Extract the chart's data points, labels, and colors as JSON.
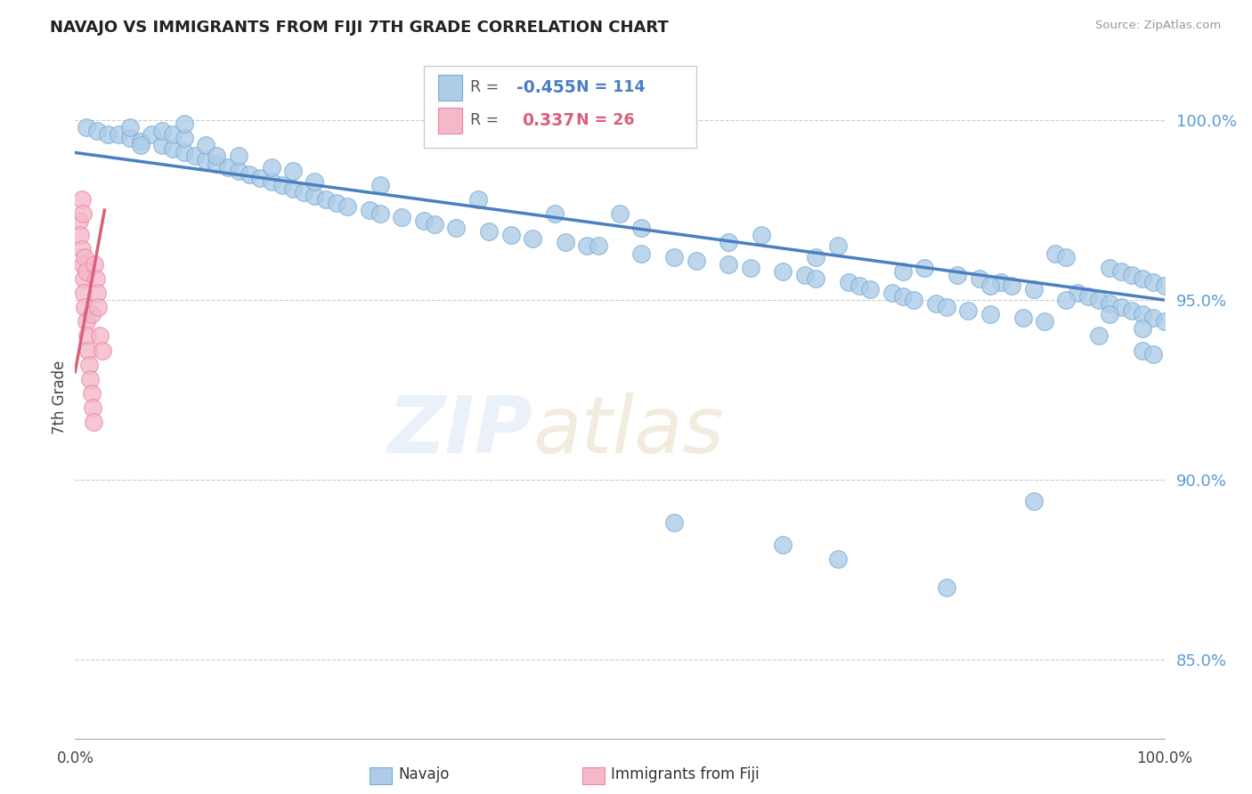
{
  "title": "NAVAJO VS IMMIGRANTS FROM FIJI 7TH GRADE CORRELATION CHART",
  "source_text": "Source: ZipAtlas.com",
  "ylabel": "7th Grade",
  "ytick_values": [
    0.85,
    0.9,
    0.95,
    1.0
  ],
  "xmin": 0.0,
  "xmax": 1.0,
  "ymin": 0.828,
  "ymax": 1.018,
  "navajo_color": "#aecce8",
  "navajo_edge_color": "#7aadd4",
  "fiji_color": "#f4b8c8",
  "fiji_edge_color": "#e888a8",
  "navajo_line_color": "#4a7fc1",
  "fiji_line_color": "#d9607a",
  "legend_navajo_R": "-0.455",
  "legend_navajo_N": "114",
  "legend_fiji_R": "0.337",
  "legend_fiji_N": "26",
  "navajo_scatter_x": [
    0.01,
    0.02,
    0.03,
    0.04,
    0.05,
    0.05,
    0.06,
    0.07,
    0.08,
    0.08,
    0.09,
    0.09,
    0.1,
    0.1,
    0.1,
    0.11,
    0.12,
    0.12,
    0.13,
    0.14,
    0.15,
    0.15,
    0.16,
    0.17,
    0.18,
    0.18,
    0.19,
    0.2,
    0.21,
    0.22,
    0.22,
    0.23,
    0.24,
    0.25,
    0.27,
    0.28,
    0.3,
    0.32,
    0.33,
    0.35,
    0.38,
    0.4,
    0.42,
    0.45,
    0.47,
    0.48,
    0.5,
    0.52,
    0.55,
    0.57,
    0.6,
    0.62,
    0.63,
    0.65,
    0.67,
    0.68,
    0.7,
    0.71,
    0.72,
    0.73,
    0.75,
    0.76,
    0.77,
    0.78,
    0.79,
    0.8,
    0.81,
    0.82,
    0.83,
    0.84,
    0.85,
    0.86,
    0.87,
    0.88,
    0.89,
    0.9,
    0.91,
    0.92,
    0.93,
    0.94,
    0.94,
    0.95,
    0.95,
    0.96,
    0.96,
    0.97,
    0.97,
    0.98,
    0.98,
    0.98,
    0.99,
    0.99,
    0.99,
    1.0,
    1.0,
    0.06,
    0.13,
    0.2,
    0.28,
    0.37,
    0.44,
    0.52,
    0.6,
    0.68,
    0.76,
    0.84,
    0.91,
    0.95,
    0.98,
    0.7,
    0.8,
    0.55,
    0.65,
    0.88
  ],
  "navajo_scatter_y": [
    0.998,
    0.997,
    0.996,
    0.996,
    0.995,
    0.998,
    0.994,
    0.996,
    0.993,
    0.997,
    0.992,
    0.996,
    0.991,
    0.995,
    0.999,
    0.99,
    0.989,
    0.993,
    0.988,
    0.987,
    0.986,
    0.99,
    0.985,
    0.984,
    0.983,
    0.987,
    0.982,
    0.981,
    0.98,
    0.979,
    0.983,
    0.978,
    0.977,
    0.976,
    0.975,
    0.974,
    0.973,
    0.972,
    0.971,
    0.97,
    0.969,
    0.968,
    0.967,
    0.966,
    0.965,
    0.965,
    0.974,
    0.963,
    0.962,
    0.961,
    0.96,
    0.959,
    0.968,
    0.958,
    0.957,
    0.956,
    0.965,
    0.955,
    0.954,
    0.953,
    0.952,
    0.951,
    0.95,
    0.959,
    0.949,
    0.948,
    0.957,
    0.947,
    0.956,
    0.946,
    0.955,
    0.954,
    0.945,
    0.953,
    0.944,
    0.963,
    0.962,
    0.952,
    0.951,
    0.95,
    0.94,
    0.959,
    0.949,
    0.958,
    0.948,
    0.957,
    0.947,
    0.956,
    0.946,
    0.936,
    0.955,
    0.945,
    0.935,
    0.954,
    0.944,
    0.993,
    0.99,
    0.986,
    0.982,
    0.978,
    0.974,
    0.97,
    0.966,
    0.962,
    0.958,
    0.954,
    0.95,
    0.946,
    0.942,
    0.878,
    0.87,
    0.888,
    0.882,
    0.894
  ],
  "fiji_scatter_x": [
    0.004,
    0.005,
    0.006,
    0.006,
    0.007,
    0.007,
    0.008,
    0.008,
    0.009,
    0.009,
    0.01,
    0.01,
    0.011,
    0.012,
    0.013,
    0.014,
    0.015,
    0.015,
    0.016,
    0.017,
    0.018,
    0.019,
    0.02,
    0.021,
    0.023,
    0.025
  ],
  "fiji_scatter_y": [
    0.972,
    0.968,
    0.964,
    0.978,
    0.96,
    0.974,
    0.956,
    0.952,
    0.962,
    0.948,
    0.958,
    0.944,
    0.94,
    0.936,
    0.932,
    0.928,
    0.924,
    0.946,
    0.92,
    0.916,
    0.96,
    0.956,
    0.952,
    0.948,
    0.94,
    0.936
  ],
  "navajo_trendline_x": [
    0.0,
    1.0
  ],
  "navajo_trendline_y": [
    0.991,
    0.95
  ],
  "fiji_trendline_x": [
    0.0,
    0.027
  ],
  "fiji_trendline_y": [
    0.93,
    0.975
  ]
}
